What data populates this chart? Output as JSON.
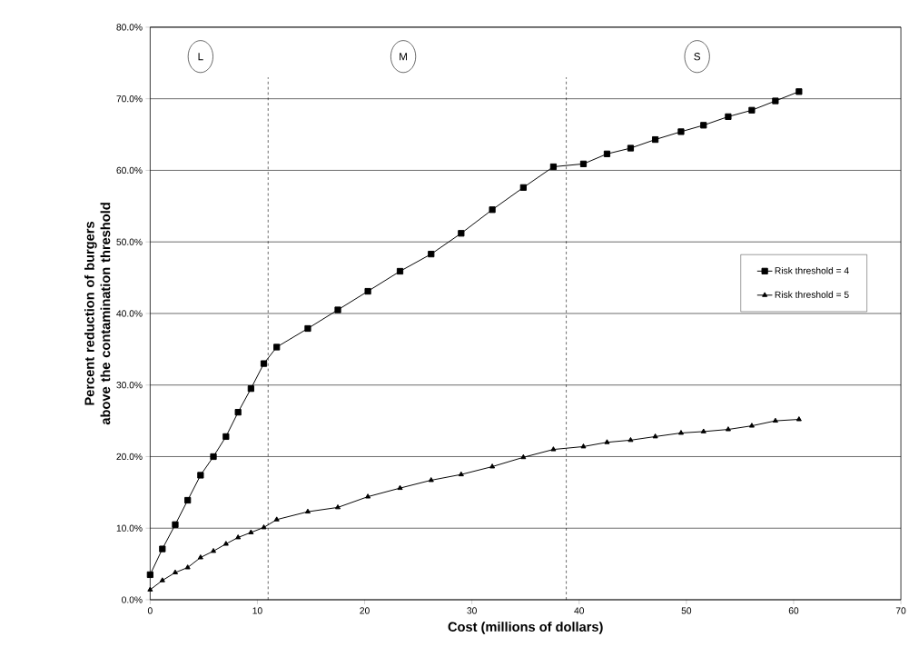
{
  "chart_data": {
    "type": "line",
    "xlabel": "Cost (millions of dollars)",
    "ylabel": "Percent reduction of burgers above the contamination threshold",
    "x": [
      0,
      1.14,
      2.34,
      3.5,
      4.7,
      5.9,
      7.07,
      8.2,
      9.4,
      10.6,
      11.8,
      14.7,
      17.5,
      20.3,
      23.3,
      26.2,
      29.0,
      31.9,
      34.8,
      37.6,
      40.4,
      42.6,
      44.8,
      47.1,
      49.5,
      51.6,
      53.9,
      56.1,
      58.3,
      60.5
    ],
    "series": [
      {
        "name": "Risk threshold = 4",
        "color": "#000000",
        "marker": "square",
        "values": [
          3.5,
          7.1,
          10.5,
          13.9,
          17.4,
          20.0,
          22.8,
          26.2,
          29.5,
          33.0,
          35.3,
          37.9,
          40.5,
          43.1,
          45.9,
          48.3,
          51.2,
          54.5,
          57.6,
          60.5,
          60.9,
          62.3,
          63.1,
          64.3,
          65.4,
          66.3,
          67.5,
          68.4,
          69.7,
          71.0
        ]
      },
      {
        "name": "Risk threshold = 5",
        "color": "#000000",
        "marker": "triangle",
        "values": [
          1.4,
          2.7,
          3.8,
          4.5,
          5.9,
          6.8,
          7.8,
          8.7,
          9.4,
          10.1,
          11.2,
          12.3,
          12.9,
          14.4,
          15.6,
          16.7,
          17.5,
          18.6,
          19.9,
          21.0,
          21.4,
          22.0,
          22.3,
          22.8,
          23.3,
          23.5,
          23.8,
          24.3,
          25.0,
          25.2
        ]
      }
    ],
    "xlim": [
      0,
      70
    ],
    "xticks": [
      0,
      10,
      20,
      30,
      40,
      50,
      60,
      70
    ],
    "ylim": [
      0,
      80
    ],
    "yticks": [
      {
        "value": 0,
        "label": "0.0%"
      },
      {
        "value": 10,
        "label": "10.0%"
      },
      {
        "value": 20,
        "label": "20.0%"
      },
      {
        "value": 30,
        "label": "30.0%"
      },
      {
        "value": 40,
        "label": "40.0%"
      },
      {
        "value": 50,
        "label": "50.0%"
      },
      {
        "value": 60,
        "label": "60.0%"
      },
      {
        "value": 70,
        "label": "70.0%"
      },
      {
        "value": 80,
        "label": "80.0%"
      }
    ],
    "grid": "y",
    "legend": "right",
    "line_style": "solid",
    "ref_lines": [
      {
        "axis": "x",
        "value": 11.0,
        "line_style": "dashed",
        "color": "#000000"
      },
      {
        "axis": "x",
        "value": 38.8,
        "line_style": "dashed",
        "color": "#000000"
      }
    ],
    "annotations": [
      {
        "text": "L",
        "x": 4.7,
        "y": 75.9
      },
      {
        "text": "M",
        "x": 23.6,
        "y": 75.9
      },
      {
        "text": "S",
        "x": 51.0,
        "y": 75.9
      }
    ]
  }
}
